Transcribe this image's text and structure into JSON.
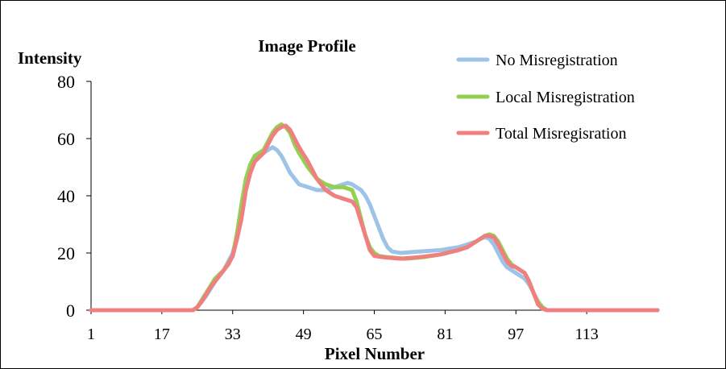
{
  "chart_data": {
    "type": "line",
    "title": "Image Profile",
    "xlabel": "Pixel Number",
    "ylabel": "Intensity",
    "xlim": [
      1,
      129
    ],
    "ylim": [
      0,
      80
    ],
    "yticks": [
      0,
      20,
      40,
      60,
      80
    ],
    "xticks": [
      1,
      17,
      33,
      49,
      65,
      81,
      97,
      113
    ],
    "grid": false,
    "legend_position": "top-right",
    "series": [
      {
        "name": "No Misregistration",
        "color": "#9DC3E6",
        "points": [
          [
            1,
            0
          ],
          [
            10,
            0
          ],
          [
            20,
            0
          ],
          [
            24,
            0
          ],
          [
            25,
            1
          ],
          [
            27,
            5
          ],
          [
            29,
            10
          ],
          [
            31,
            14
          ],
          [
            33,
            20
          ],
          [
            34,
            26
          ],
          [
            35,
            34
          ],
          [
            36,
            43
          ],
          [
            37,
            49
          ],
          [
            38,
            53
          ],
          [
            40,
            55
          ],
          [
            41,
            56
          ],
          [
            42,
            57
          ],
          [
            43,
            56
          ],
          [
            44,
            54
          ],
          [
            45,
            51
          ],
          [
            46,
            48
          ],
          [
            47,
            46
          ],
          [
            48,
            44
          ],
          [
            50,
            43
          ],
          [
            52,
            42
          ],
          [
            54,
            42
          ],
          [
            56,
            43
          ],
          [
            58,
            44
          ],
          [
            59,
            44.5
          ],
          [
            60,
            44
          ],
          [
            62,
            42
          ],
          [
            63,
            40
          ],
          [
            64,
            37
          ],
          [
            65,
            33
          ],
          [
            66,
            29
          ],
          [
            67,
            25
          ],
          [
            68,
            22
          ],
          [
            69,
            20.5
          ],
          [
            71,
            20
          ],
          [
            75,
            20.5
          ],
          [
            80,
            21
          ],
          [
            84,
            22
          ],
          [
            86,
            23
          ],
          [
            88,
            24
          ],
          [
            89,
            25
          ],
          [
            90,
            25.5
          ],
          [
            91,
            25
          ],
          [
            92,
            23
          ],
          [
            93,
            20
          ],
          [
            94,
            17
          ],
          [
            95,
            15
          ],
          [
            97,
            13
          ],
          [
            99,
            11
          ],
          [
            100,
            9
          ],
          [
            101,
            6
          ],
          [
            102,
            3
          ],
          [
            103,
            1
          ],
          [
            104,
            0
          ],
          [
            113,
            0
          ],
          [
            129,
            0
          ]
        ]
      },
      {
        "name": "Local Misregistration",
        "color": "#92D050",
        "points": [
          [
            1,
            0
          ],
          [
            10,
            0
          ],
          [
            20,
            0
          ],
          [
            24,
            0
          ],
          [
            25,
            1
          ],
          [
            27,
            6
          ],
          [
            29,
            11
          ],
          [
            31,
            14
          ],
          [
            33,
            19
          ],
          [
            34,
            27
          ],
          [
            35,
            37
          ],
          [
            36,
            46
          ],
          [
            37,
            51
          ],
          [
            38,
            54
          ],
          [
            40,
            56
          ],
          [
            41,
            59
          ],
          [
            42,
            62
          ],
          [
            43,
            64
          ],
          [
            44,
            65
          ],
          [
            45,
            64
          ],
          [
            46,
            62
          ],
          [
            47,
            58
          ],
          [
            48,
            55
          ],
          [
            50,
            50
          ],
          [
            52,
            46
          ],
          [
            54,
            44
          ],
          [
            56,
            43
          ],
          [
            58,
            43
          ],
          [
            60,
            42
          ],
          [
            61,
            38
          ],
          [
            62,
            32
          ],
          [
            63,
            26
          ],
          [
            64,
            22
          ],
          [
            65,
            20
          ],
          [
            66,
            19
          ],
          [
            68,
            18.5
          ],
          [
            72,
            18
          ],
          [
            76,
            18.5
          ],
          [
            80,
            19.5
          ],
          [
            84,
            21
          ],
          [
            86,
            22
          ],
          [
            88,
            24
          ],
          [
            89,
            25
          ],
          [
            90,
            26
          ],
          [
            91,
            26.5
          ],
          [
            92,
            26
          ],
          [
            93,
            24
          ],
          [
            94,
            21
          ],
          [
            95,
            18
          ],
          [
            96,
            16
          ],
          [
            97,
            15
          ],
          [
            99,
            13
          ],
          [
            100,
            10
          ],
          [
            101,
            6
          ],
          [
            102,
            3
          ],
          [
            103,
            1
          ],
          [
            104,
            0
          ],
          [
            113,
            0
          ],
          [
            129,
            0
          ]
        ]
      },
      {
        "name": "Total Misregisration",
        "color": "#F08080",
        "points": [
          [
            1,
            0
          ],
          [
            10,
            0
          ],
          [
            20,
            0
          ],
          [
            24,
            0
          ],
          [
            25,
            1
          ],
          [
            26,
            3
          ],
          [
            28,
            8
          ],
          [
            30,
            12
          ],
          [
            32,
            16
          ],
          [
            33,
            19
          ],
          [
            34,
            25
          ],
          [
            35,
            32
          ],
          [
            36,
            42
          ],
          [
            37,
            48
          ],
          [
            38,
            52
          ],
          [
            40,
            55
          ],
          [
            41,
            58
          ],
          [
            42,
            61
          ],
          [
            43,
            63
          ],
          [
            44,
            64
          ],
          [
            45,
            64.5
          ],
          [
            46,
            63
          ],
          [
            47,
            60
          ],
          [
            48,
            57
          ],
          [
            50,
            52
          ],
          [
            52,
            46
          ],
          [
            54,
            42
          ],
          [
            56,
            40
          ],
          [
            58,
            39
          ],
          [
            60,
            38
          ],
          [
            61,
            36
          ],
          [
            62,
            31
          ],
          [
            63,
            26
          ],
          [
            64,
            21
          ],
          [
            65,
            19
          ],
          [
            67,
            18.5
          ],
          [
            71,
            18
          ],
          [
            75,
            18.5
          ],
          [
            80,
            19.5
          ],
          [
            84,
            21
          ],
          [
            86,
            22
          ],
          [
            88,
            24
          ],
          [
            89,
            25
          ],
          [
            90,
            26
          ],
          [
            91,
            26
          ],
          [
            92,
            25.5
          ],
          [
            93,
            23
          ],
          [
            94,
            20
          ],
          [
            95,
            17
          ],
          [
            96,
            15.5
          ],
          [
            97,
            15
          ],
          [
            99,
            13
          ],
          [
            100,
            10
          ],
          [
            101,
            6
          ],
          [
            102,
            2
          ],
          [
            103,
            0.5
          ],
          [
            104,
            0
          ],
          [
            113,
            0
          ],
          [
            129,
            0
          ]
        ]
      }
    ]
  }
}
